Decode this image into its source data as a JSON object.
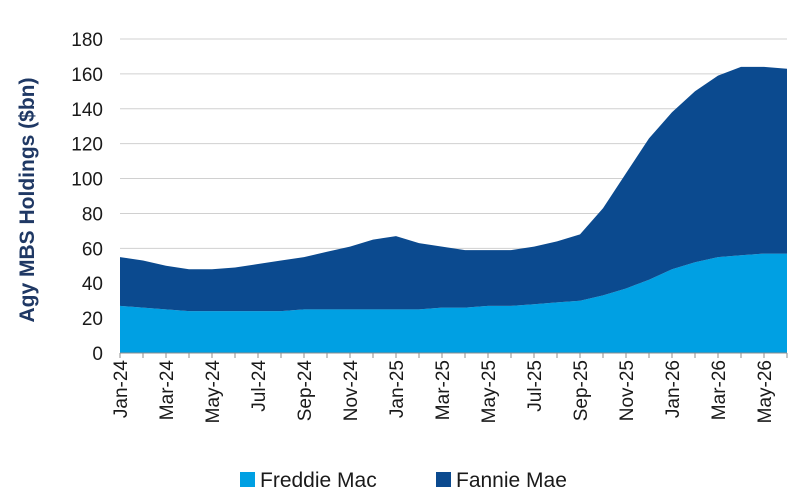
{
  "chart_data": {
    "type": "area",
    "stacked": true,
    "ylabel": "Agy MBS Holdings ($bn)",
    "xlabel": "",
    "ylim": [
      0,
      180
    ],
    "yticks": [
      0,
      20,
      40,
      60,
      80,
      100,
      120,
      140,
      160,
      180
    ],
    "grid": true,
    "legend_position": "bottom",
    "x": [
      "Jan-24",
      "Feb-24",
      "Mar-24",
      "Apr-24",
      "May-24",
      "Jun-24",
      "Jul-24",
      "Aug-24",
      "Sep-24",
      "Oct-24",
      "Nov-24",
      "Dec-24",
      "Jan-25",
      "Feb-25",
      "Mar-25",
      "Apr-25",
      "May-25",
      "Jun-25",
      "Jul-25",
      "Aug-25",
      "Sep-25",
      "Oct-25",
      "Nov-25",
      "Dec-25",
      "Jan-26",
      "Feb-26",
      "Mar-26",
      "Apr-26",
      "May-26",
      "Jun-26"
    ],
    "x_tick_labels": [
      "Jan-24",
      "Mar-24",
      "May-24",
      "Jul-24",
      "Sep-24",
      "Nov-24",
      "Jan-25",
      "Mar-25",
      "May-25",
      "Jul-25",
      "Sep-25",
      "Nov-25",
      "Jan-26",
      "Mar-26",
      "May-26"
    ],
    "series": [
      {
        "name": "Freddie Mac",
        "color": "#00a0e3",
        "values": [
          27,
          26,
          25,
          24,
          24,
          24,
          24,
          24,
          25,
          25,
          25,
          25,
          25,
          25,
          26,
          26,
          27,
          27,
          28,
          29,
          30,
          33,
          37,
          42,
          48,
          52,
          55,
          56,
          57,
          57
        ]
      },
      {
        "name": "Fannie Mae",
        "color": "#0b4a8f",
        "values": [
          28,
          27,
          25,
          24,
          24,
          25,
          27,
          29,
          30,
          33,
          36,
          40,
          42,
          38,
          35,
          33,
          32,
          32,
          33,
          35,
          38,
          50,
          66,
          81,
          90,
          98,
          104,
          108,
          107,
          106
        ]
      }
    ]
  }
}
